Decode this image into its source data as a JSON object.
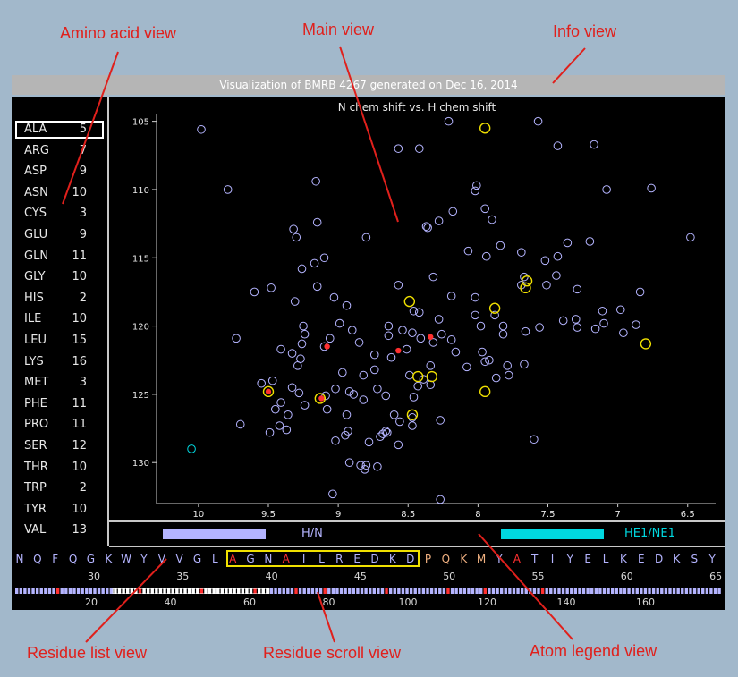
{
  "annotations": {
    "amino_acid_view": "Amino acid view",
    "main_view": "Main view",
    "info_view": "Info view",
    "residue_list_view": "Residue list view",
    "residue_scroll_view": "Residue scroll view",
    "atom_legend_view": "Atom legend view"
  },
  "info": {
    "text": "Visualization of BMRB 4267 generated on Dec 16, 2014"
  },
  "amino_acids": [
    {
      "name": "ALA",
      "count": "5"
    },
    {
      "name": "ARG",
      "count": "7"
    },
    {
      "name": "ASP",
      "count": "9"
    },
    {
      "name": "ASN",
      "count": "10"
    },
    {
      "name": "CYS",
      "count": "3"
    },
    {
      "name": "GLU",
      "count": "9"
    },
    {
      "name": "GLN",
      "count": "11"
    },
    {
      "name": "GLY",
      "count": "10"
    },
    {
      "name": "HIS",
      "count": "2"
    },
    {
      "name": "ILE",
      "count": "10"
    },
    {
      "name": "LEU",
      "count": "15"
    },
    {
      "name": "LYS",
      "count": "16"
    },
    {
      "name": "MET",
      "count": "3"
    },
    {
      "name": "PHE",
      "count": "11"
    },
    {
      "name": "PRO",
      "count": "11"
    },
    {
      "name": "SER",
      "count": "12"
    },
    {
      "name": "THR",
      "count": "10"
    },
    {
      "name": "TRP",
      "count": "2"
    },
    {
      "name": "TYR",
      "count": "10"
    },
    {
      "name": "VAL",
      "count": "13"
    }
  ],
  "chart_data": {
    "type": "scatter",
    "title": "N chem shift vs. H chem shift",
    "xlim": [
      10.3,
      6.3
    ],
    "ylim": [
      104.5,
      133.0
    ],
    "x_ticks": [
      "10",
      "9.5",
      "9",
      "8.5",
      "8",
      "7.5",
      "7",
      "6.5"
    ],
    "x_tick_values": [
      10,
      9.5,
      9,
      8.5,
      8,
      7.5,
      7,
      6.5
    ],
    "y_ticks": [
      "105",
      "110",
      "115",
      "120",
      "125",
      "130"
    ],
    "y_tick_values": [
      105,
      110,
      115,
      120,
      125,
      130
    ],
    "colors": {
      "H/N": "#b4b4ff",
      "HE1/NE1": "#00d8e0",
      "highlight": "#f0e000",
      "selected": "#ff3030"
    },
    "series": [
      {
        "name": "H/N",
        "points": [
          [
            9.98,
            105.6
          ],
          [
            9.79,
            110.0
          ],
          [
            8.21,
            105.0
          ],
          [
            7.57,
            105.0
          ],
          [
            7.43,
            106.8
          ],
          [
            7.17,
            106.7
          ],
          [
            8.57,
            107.0
          ],
          [
            8.42,
            107.0
          ],
          [
            8.01,
            109.7
          ],
          [
            7.08,
            110.0
          ],
          [
            6.76,
            109.9
          ],
          [
            8.02,
            110.1
          ],
          [
            9.16,
            109.4
          ],
          [
            9.1,
            115.0
          ],
          [
            9.27,
            122.4
          ],
          [
            9.45,
            126.1
          ],
          [
            9.6,
            117.5
          ],
          [
            9.15,
            112.4
          ],
          [
            8.36,
            112.8
          ],
          [
            7.95,
            111.4
          ],
          [
            8.18,
            111.6
          ],
          [
            7.9,
            112.2
          ],
          [
            7.84,
            114.1
          ],
          [
            8.37,
            112.7
          ],
          [
            8.28,
            112.3
          ],
          [
            7.2,
            113.8
          ],
          [
            7.36,
            113.9
          ],
          [
            8.07,
            114.5
          ],
          [
            7.94,
            114.9
          ],
          [
            7.69,
            114.6
          ],
          [
            7.52,
            115.2
          ],
          [
            7.43,
            114.9
          ],
          [
            7.44,
            116.3
          ],
          [
            6.48,
            113.5
          ],
          [
            9.32,
            112.9
          ],
          [
            9.3,
            113.5
          ],
          [
            9.26,
            115.8
          ],
          [
            9.17,
            115.4
          ],
          [
            8.8,
            113.5
          ],
          [
            8.46,
            118.9
          ],
          [
            8.32,
            116.4
          ],
          [
            8.19,
            117.8
          ],
          [
            8.02,
            117.9
          ],
          [
            8.02,
            119.2
          ],
          [
            7.88,
            119.2
          ],
          [
            7.67,
            116.4
          ],
          [
            7.69,
            117.0
          ],
          [
            7.29,
            117.3
          ],
          [
            7.11,
            118.9
          ],
          [
            6.98,
            118.8
          ],
          [
            7.1,
            119.8
          ],
          [
            6.96,
            120.5
          ],
          [
            6.84,
            117.5
          ],
          [
            6.87,
            119.9
          ],
          [
            8.47,
            120.5
          ],
          [
            8.42,
            119.0
          ],
          [
            8.28,
            119.5
          ],
          [
            8.19,
            121.0
          ],
          [
            7.82,
            120.0
          ],
          [
            7.98,
            120.0
          ],
          [
            7.82,
            120.6
          ],
          [
            7.56,
            120.1
          ],
          [
            7.39,
            119.6
          ],
          [
            7.29,
            120.1
          ],
          [
            7.66,
            120.4
          ],
          [
            7.3,
            119.5
          ],
          [
            7.16,
            120.2
          ],
          [
            9.73,
            120.9
          ],
          [
            9.25,
            120.0
          ],
          [
            9.24,
            120.6
          ],
          [
            9.26,
            121.3
          ],
          [
            9.33,
            122.0
          ],
          [
            9.41,
            121.7
          ],
          [
            9.31,
            118.2
          ],
          [
            9.48,
            117.2
          ],
          [
            9.15,
            117.1
          ],
          [
            9.03,
            117.9
          ],
          [
            8.94,
            118.5
          ],
          [
            8.99,
            119.8
          ],
          [
            9.06,
            120.9
          ],
          [
            9.1,
            121.5
          ],
          [
            8.9,
            120.3
          ],
          [
            8.85,
            121.2
          ],
          [
            8.64,
            120.7
          ],
          [
            8.51,
            121.7
          ],
          [
            8.41,
            120.9
          ],
          [
            8.26,
            120.6
          ],
          [
            8.08,
            123.0
          ],
          [
            7.95,
            122.6
          ],
          [
            7.79,
            122.9
          ],
          [
            7.51,
            117.0
          ],
          [
            8.57,
            117.0
          ],
          [
            8.54,
            120.3
          ],
          [
            8.64,
            120.0
          ],
          [
            9.29,
            122.9
          ],
          [
            9.28,
            124.9
          ],
          [
            8.82,
            123.6
          ],
          [
            8.74,
            123.2
          ],
          [
            8.97,
            123.4
          ],
          [
            9.02,
            124.6
          ],
          [
            9.09,
            125.1
          ],
          [
            9.08,
            126.1
          ],
          [
            8.92,
            124.8
          ],
          [
            8.74,
            122.1
          ],
          [
            8.62,
            122.3
          ],
          [
            8.49,
            123.6
          ],
          [
            8.34,
            124.3
          ],
          [
            8.39,
            123.9
          ],
          [
            8.34,
            122.9
          ],
          [
            8.32,
            121.2
          ],
          [
            8.16,
            121.9
          ],
          [
            7.97,
            121.9
          ],
          [
            7.92,
            122.5
          ],
          [
            7.87,
            123.8
          ],
          [
            7.78,
            123.6
          ],
          [
            7.67,
            122.8
          ],
          [
            9.24,
            125.8
          ],
          [
            8.89,
            125.0
          ],
          [
            8.82,
            125.4
          ],
          [
            8.66,
            125.1
          ],
          [
            8.72,
            124.6
          ],
          [
            8.46,
            125.2
          ],
          [
            8.27,
            126.9
          ],
          [
            8.47,
            127.3
          ],
          [
            8.56,
            127.0
          ],
          [
            8.7,
            128.1
          ],
          [
            8.66,
            127.7
          ],
          [
            8.94,
            126.5
          ],
          [
            8.93,
            127.7
          ],
          [
            9.02,
            128.4
          ],
          [
            8.95,
            128.0
          ],
          [
            8.92,
            130.0
          ],
          [
            8.84,
            130.2
          ],
          [
            8.72,
            130.3
          ],
          [
            8.8,
            130.2
          ],
          [
            8.81,
            130.5
          ],
          [
            9.33,
            124.5
          ],
          [
            9.36,
            126.5
          ],
          [
            9.41,
            125.6
          ],
          [
            9.47,
            124.0
          ],
          [
            9.55,
            124.2
          ],
          [
            9.7,
            127.2
          ],
          [
            9.49,
            127.8
          ],
          [
            9.42,
            127.3
          ],
          [
            9.37,
            127.6
          ],
          [
            8.78,
            128.5
          ],
          [
            8.6,
            126.5
          ],
          [
            8.57,
            128.7
          ],
          [
            8.68,
            127.9
          ],
          [
            8.65,
            127.8
          ],
          [
            9.04,
            132.3
          ],
          [
            8.27,
            132.7
          ],
          [
            7.6,
            128.3
          ],
          [
            8.47,
            126.7
          ],
          [
            8.43,
            124.4
          ]
        ]
      },
      {
        "name": "HE1/NE1",
        "points": [
          [
            10.05,
            129.0
          ]
        ]
      }
    ],
    "highlighted_points": [
      [
        7.95,
        105.5
      ],
      [
        8.49,
        118.2
      ],
      [
        7.88,
        118.7
      ],
      [
        7.65,
        116.7
      ],
      [
        7.66,
        117.2
      ],
      [
        6.8,
        121.3
      ],
      [
        9.5,
        124.8
      ],
      [
        9.13,
        125.3
      ],
      [
        8.47,
        126.5
      ],
      [
        8.43,
        123.7
      ],
      [
        8.33,
        123.7
      ],
      [
        7.95,
        124.8
      ]
    ],
    "selected_points": [
      [
        9.5,
        124.8
      ],
      [
        9.12,
        125.3
      ],
      [
        9.08,
        121.5
      ],
      [
        8.57,
        121.8
      ],
      [
        8.34,
        120.8
      ]
    ]
  },
  "atom_legend": [
    {
      "label": "H/N",
      "color": "#b4b4ff"
    },
    {
      "label": "HE1/NE1",
      "color": "#00d8e0"
    }
  ],
  "residues": [
    {
      "aa": "N",
      "c": "#b4b4ff"
    },
    {
      "aa": "Q",
      "c": "#b4b4ff"
    },
    {
      "aa": "F",
      "c": "#b4b4ff"
    },
    {
      "aa": "Q",
      "c": "#b4b4ff"
    },
    {
      "aa": "G",
      "c": "#b4b4ff"
    },
    {
      "aa": "K",
      "c": "#b4b4ff"
    },
    {
      "aa": "W",
      "c": "#b4b4ff"
    },
    {
      "aa": "Y",
      "c": "#b4b4ff"
    },
    {
      "aa": "V",
      "c": "#b4b4ff"
    },
    {
      "aa": "V",
      "c": "#b4b4ff"
    },
    {
      "aa": "G",
      "c": "#b4b4ff"
    },
    {
      "aa": "L",
      "c": "#b4b4ff"
    },
    {
      "aa": "A",
      "c": "#ff3030"
    },
    {
      "aa": "G",
      "c": "#b4b4ff"
    },
    {
      "aa": "N",
      "c": "#b4b4ff"
    },
    {
      "aa": "A",
      "c": "#ff3030"
    },
    {
      "aa": "I",
      "c": "#b4b4ff"
    },
    {
      "aa": "L",
      "c": "#b4b4ff"
    },
    {
      "aa": "R",
      "c": "#b4b4ff"
    },
    {
      "aa": "E",
      "c": "#b4b4ff"
    },
    {
      "aa": "D",
      "c": "#b4b4ff"
    },
    {
      "aa": "K",
      "c": "#b4b4ff"
    },
    {
      "aa": "D",
      "c": "#b4b4ff"
    },
    {
      "aa": "P",
      "c": "#f0b080"
    },
    {
      "aa": "Q",
      "c": "#f0b080"
    },
    {
      "aa": "K",
      "c": "#f0b080"
    },
    {
      "aa": "M",
      "c": "#f0b080"
    },
    {
      "aa": "Y",
      "c": "#b4b4ff"
    },
    {
      "aa": "A",
      "c": "#ff3030"
    },
    {
      "aa": "T",
      "c": "#b4b4ff"
    },
    {
      "aa": "I",
      "c": "#b4b4ff"
    },
    {
      "aa": "Y",
      "c": "#b4b4ff"
    },
    {
      "aa": "E",
      "c": "#b4b4ff"
    },
    {
      "aa": "L",
      "c": "#b4b4ff"
    },
    {
      "aa": "K",
      "c": "#b4b4ff"
    },
    {
      "aa": "E",
      "c": "#b4b4ff"
    },
    {
      "aa": "D",
      "c": "#b4b4ff"
    },
    {
      "aa": "K",
      "c": "#b4b4ff"
    },
    {
      "aa": "S",
      "c": "#b4b4ff"
    },
    {
      "aa": "Y",
      "c": "#b4b4ff"
    }
  ],
  "residue_numbers": [
    "30",
    "35",
    "40",
    "45",
    "50",
    "55",
    "60",
    "65"
  ],
  "scroll_numbers": [
    "20",
    "40",
    "60",
    "80",
    "100",
    "120",
    "140",
    "160"
  ]
}
